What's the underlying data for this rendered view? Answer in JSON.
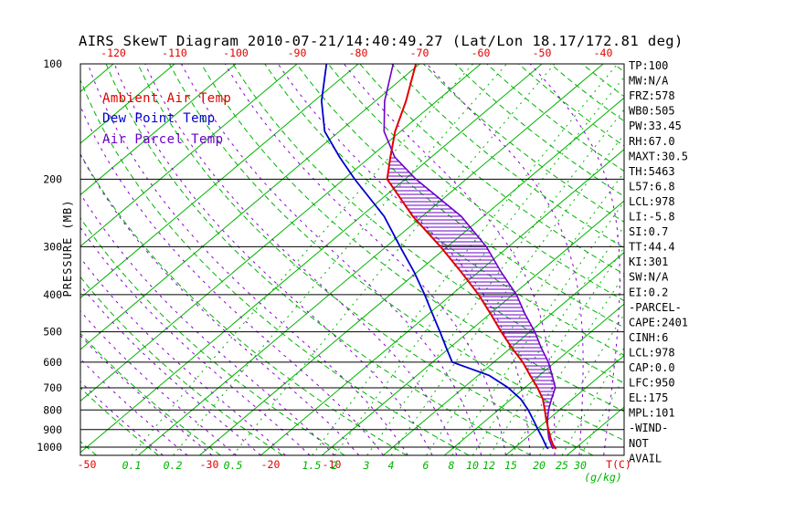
{
  "header": {
    "title": "AIRS SkewT Diagram 2010-07-21/14:40:49.27 (Lat/Lon 18.17/172.81 deg)"
  },
  "legend": [
    {
      "label": "Ambient Air Temp",
      "color": "#e00000"
    },
    {
      "label": "Dew Point Temp",
      "color": "#0000cd"
    },
    {
      "label": "Air Parcel Temp",
      "color": "#6a00c8"
    }
  ],
  "colors": {
    "green": "#00b400",
    "red": "#e00000",
    "blue": "#0000cd",
    "parcel_purple": "#6a00c8",
    "moist_purple": "#8b00d8",
    "black": "#000000"
  },
  "axes": {
    "pressure_label": "PRESSURE (MB)",
    "pressure_ticks": [
      100,
      200,
      300,
      400,
      500,
      600,
      700,
      800,
      900,
      1000
    ],
    "top_temp_ticks": [
      -120,
      -110,
      -100,
      -90,
      -80,
      -70,
      -60,
      -50,
      -40
    ],
    "bottom_temp_ticks": [
      -50,
      -30,
      -20,
      -10
    ],
    "temp_unit": "T(C)",
    "mixing_unit": "(g/kg)",
    "mixing_ratio_ticks": [
      0.1,
      0.2,
      0.5,
      1.5,
      2,
      3,
      4,
      6,
      8,
      10,
      12,
      15,
      20,
      25,
      30
    ]
  },
  "stats_panel": [
    "TP:100",
    "MW:N/A",
    "FRZ:578",
    "WB0:505",
    "PW:33.45",
    "RH:67.0",
    "MAXT:30.5",
    "TH:5463",
    "L57:6.8",
    "LCL:978",
    "LI:-5.8",
    "SI:0.7",
    "TT:44.4",
    "KI:301",
    "SW:N/A",
    "EI:0.2",
    "-PARCEL-",
    "CAPE:2401",
    "CINH:6",
    "LCL:978",
    "CAP:0.0",
    "LFC:950",
    "EL:175",
    "MPL:101",
    "-WIND-",
    "NOT",
    "AVAIL"
  ],
  "chart_data": {
    "type": "line",
    "title": "AIRS SkewT Diagram 2010-07-21/14:40:49.27 (Lat/Lon 18.17/172.81 deg)",
    "xlabel": "T(C)",
    "ylabel": "PRESSURE (MB)",
    "ylim_pressure_mb": [
      100,
      1050
    ],
    "xlim_temp_c_at_surface": [
      -50,
      40
    ],
    "y_scale": "log-pressure-inverted",
    "skew": "isotherms slanted lower-left to upper-right",
    "grid": true,
    "legend_position": "upper-left",
    "pressure_levels": [
      1010,
      1000,
      950,
      900,
      850,
      800,
      750,
      700,
      650,
      600,
      550,
      500,
      450,
      400,
      350,
      300,
      250,
      200,
      175,
      150,
      125,
      100
    ],
    "series": [
      {
        "name": "Ambient Air Temp",
        "color": "#e00000",
        "temps_c": [
          27.0,
          26.3,
          24.1,
          22.0,
          19.8,
          17.6,
          15.2,
          12.1,
          8.5,
          4.7,
          0.1,
          -4.7,
          -9.8,
          -15.6,
          -22.7,
          -31.1,
          -41.5,
          -52.9,
          -56.7,
          -60.9,
          -65.0,
          -70.6
        ]
      },
      {
        "name": "Dew Point Temp",
        "color": "#0000cd",
        "temps_c": [
          25.7,
          25.1,
          22.8,
          20.3,
          17.7,
          14.9,
          11.6,
          7.3,
          1.8,
          -6.8,
          -10.6,
          -14.7,
          -19.3,
          -24.4,
          -30.4,
          -37.7,
          -46.2,
          -58.2,
          -65.0,
          -72.4,
          -78.8,
          -85.2
        ]
      },
      {
        "name": "Air Parcel Temp",
        "color": "#6a00c8",
        "temps_c": [
          26.5,
          26.0,
          23.8,
          21.9,
          20.0,
          18.2,
          16.6,
          15.0,
          12.1,
          8.9,
          4.9,
          0.8,
          -4.2,
          -9.4,
          -16.2,
          -23.6,
          -33.6,
          -48.2,
          -56.0,
          -62.7,
          -68.5,
          -74.3
        ]
      }
    ],
    "cape_hatch": {
      "between": [
        "Ambient Air Temp",
        "Air Parcel Temp"
      ],
      "pressure_top": 175,
      "pressure_bottom": 950
    },
    "background_lines": {
      "isotherms_c": {
        "from": -160,
        "to": 40,
        "step": 10,
        "style": "solid green"
      },
      "dry_adiabats_theta_c": {
        "from": -50,
        "to": 190,
        "step": 10,
        "style": "dashed green"
      },
      "moist_adiabats_thetaw_c": {
        "from": -36,
        "to": 40,
        "step": 4,
        "style": "dashed purple"
      },
      "mixing_ratio_lines_gkg": [
        0.1,
        0.2,
        0.5,
        1.5,
        2,
        3,
        4,
        6,
        8,
        10,
        12,
        15,
        20,
        25,
        30
      ]
    }
  }
}
